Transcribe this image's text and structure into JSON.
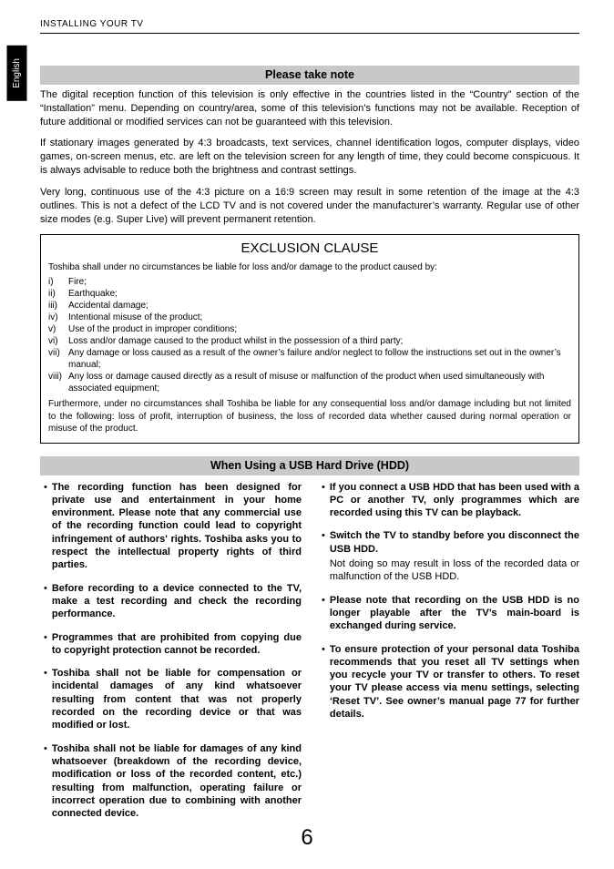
{
  "header": {
    "section": "INSTALLING YOUR TV"
  },
  "lang_tab": "English",
  "please_note": {
    "title": "Please take note",
    "p1": "The digital reception function of this television is only effective in the countries listed in the “Country” section of the “Installation” menu. Depending on country/area, some of this television’s functions may not be available. Reception of future additional or modified services can not be guaranteed with this television.",
    "p2": "If stationary images generated by 4:3 broadcasts, text services, channel identification logos, computer displays, video games, on-screen menus, etc. are left on the television screen for any length of time, they could become conspicuous. It is always advisable to reduce both the brightness and contrast settings.",
    "p3": "Very long, continuous use of the 4:3 picture on a 16:9 screen may result in some retention of the image at the 4:3 outlines. This is not a defect of the LCD TV and is not covered under the manufacturer’s warranty. Regular use of other size modes (e.g. Super Live) will prevent permanent retention."
  },
  "exclusion": {
    "title": "EXCLUSION CLAUSE",
    "intro": "Toshiba shall under no circumstances be liable for loss and/or damage to the product caused by:",
    "items": [
      {
        "n": "i)",
        "t": "Fire;"
      },
      {
        "n": "ii)",
        "t": "Earthquake;"
      },
      {
        "n": "iii)",
        "t": "Accidental damage;"
      },
      {
        "n": "iv)",
        "t": "Intentional misuse of the product;"
      },
      {
        "n": "v)",
        "t": "Use of the product in improper conditions;"
      },
      {
        "n": "vi)",
        "t": "Loss and/or damage caused to the product whilst in the possession of a third party;"
      },
      {
        "n": "vii)",
        "t": "Any damage or loss caused as a result of the owner’s failure and/or neglect to follow the instructions set out in the owner’s manual;"
      },
      {
        "n": "viii)",
        "t": "Any loss or damage caused directly as a result of misuse or malfunction of the product when used simultaneously with associated equipment;"
      }
    ],
    "footer": "Furthermore, under no circumstances shall Toshiba be liable for any consequential loss and/or damage including but not limited to the following: loss of profit, interruption of business, the loss of recorded data whether caused during normal operation or misuse of the product."
  },
  "usb": {
    "title": "When Using a USB Hard Drive (HDD)",
    "left": [
      "The recording function has been designed for private use and entertainment in your home environment. Please note that any commercial use of the recording function could lead to copyright infringement of authors' rights. Toshiba asks you to respect the intellectual property rights of third parties.",
      "Before recording to a device connected to the TV, make a test recording and check the recording performance.",
      "Programmes that are prohibited from copying due to copyright protection cannot be recorded.",
      "Toshiba shall not be liable for compensation or incidental damages of any kind whatsoever resulting from content that was not properly recorded on the recording device or that was modified or lost.",
      "Toshiba shall not be liable for damages of any kind whatsoever (breakdown of the recording device, modification or loss of the recorded content, etc.) resulting from malfunction, operating failure or incorrect operation due to combining with another connected device."
    ],
    "right": [
      {
        "bold": "If you connect a USB HDD that has been used with a PC or another TV, only programmes which are recorded using this TV can be playback.",
        "note": ""
      },
      {
        "bold": "Switch the TV to standby before you disconnect the USB HDD.",
        "note": "Not doing so may result in loss of the recorded data or malfunction of the USB HDD."
      },
      {
        "bold": "Please note that recording on the USB HDD is no longer playable after the TV’s main-board is exchanged during service.",
        "note": ""
      },
      {
        "bold": "To ensure protection of your personal data Toshiba recommends that you reset all TV settings when you recycle your TV or transfer to others. To reset your TV please access via menu settings, selecting ‘Reset TV’. See owner’s manual page 77 for further details.",
        "note": ""
      }
    ]
  },
  "page_number": "6",
  "colors": {
    "section_bg": "#c8c8c8",
    "text": "#000000",
    "bg": "#ffffff",
    "tab_bg": "#000000",
    "tab_fg": "#ffffff"
  }
}
